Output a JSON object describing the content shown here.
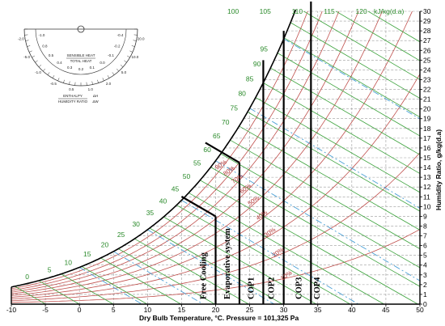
{
  "chart_data": {
    "type": "psychrometric",
    "xlabel": "Dry Bulb Temperature, °C. Pressure = 101,325 Pa",
    "ylabel": "Humidity Ratio, g/kg(d.a)",
    "enthalpy_unit": "kJ/kg(d.a)",
    "xlim": [
      -10,
      50
    ],
    "ylim": [
      0,
      30
    ],
    "x_ticks": [
      -10,
      -5,
      0,
      5,
      10,
      15,
      20,
      25,
      30,
      35,
      40,
      45,
      50
    ],
    "y_ticks": [
      0,
      1,
      2,
      3,
      4,
      5,
      6,
      7,
      8,
      9,
      10,
      11,
      12,
      13,
      14,
      15,
      16,
      17,
      18,
      19,
      20,
      21,
      22,
      23,
      24,
      25,
      26,
      27,
      28,
      29,
      30
    ],
    "enthalpy_left_labels": [
      -10,
      0,
      5,
      10,
      15,
      20,
      25,
      30,
      35,
      40,
      45,
      50,
      55,
      60,
      65,
      70,
      75,
      80,
      85,
      90,
      95
    ],
    "enthalpy_top_labels": [
      100,
      105,
      110,
      115,
      120
    ],
    "rh_labels": [
      "90%",
      "80%",
      "70%",
      "60%",
      "50%",
      "40%",
      "30%",
      "20%",
      "10%"
    ],
    "wet_bulb_labels": [
      "25°C",
      "20°C",
      "15°C",
      "10°C",
      "5°C",
      "0°C"
    ],
    "zones": [
      {
        "name": "Free Cooling",
        "dry_bulb_limit": 20,
        "humidity_limit": 9
      },
      {
        "name": "Evaporative system",
        "dry_bulb_limit": 23.5,
        "humidity_limit": 14.5
      },
      {
        "name": "COP1",
        "dry_bulb_limit": 27,
        "humidity_limit": 25
      },
      {
        "name": "COP2",
        "dry_bulb_limit": 30,
        "humidity_limit": 28
      },
      {
        "name": "COP3",
        "dry_bulb_limit": 34,
        "humidity_limit": 31
      },
      {
        "name": "COP4"
      }
    ],
    "protractor": {
      "title_top": "SENSIBLE HEAT",
      "title_bottom": "TOTAL HEAT",
      "enthalpy_label": "ENTHALPY",
      "humidity_label": "HUMIDITY RATIO",
      "dh_label": "ΔH",
      "dw_label": "ΔW",
      "outer_labels": [
        "-2.0",
        "-5.0",
        "-1.0",
        "-0.5",
        "0.5",
        "1.0",
        "2.0",
        "5.0",
        "10.0",
        "20.0"
      ],
      "inner_labels": [
        "-1.0",
        "0.8",
        "0.5",
        "0.4",
        "0.3",
        "0.2",
        "0.1",
        "0.0",
        "-0.1",
        "-0.2",
        "-0.4"
      ]
    }
  }
}
